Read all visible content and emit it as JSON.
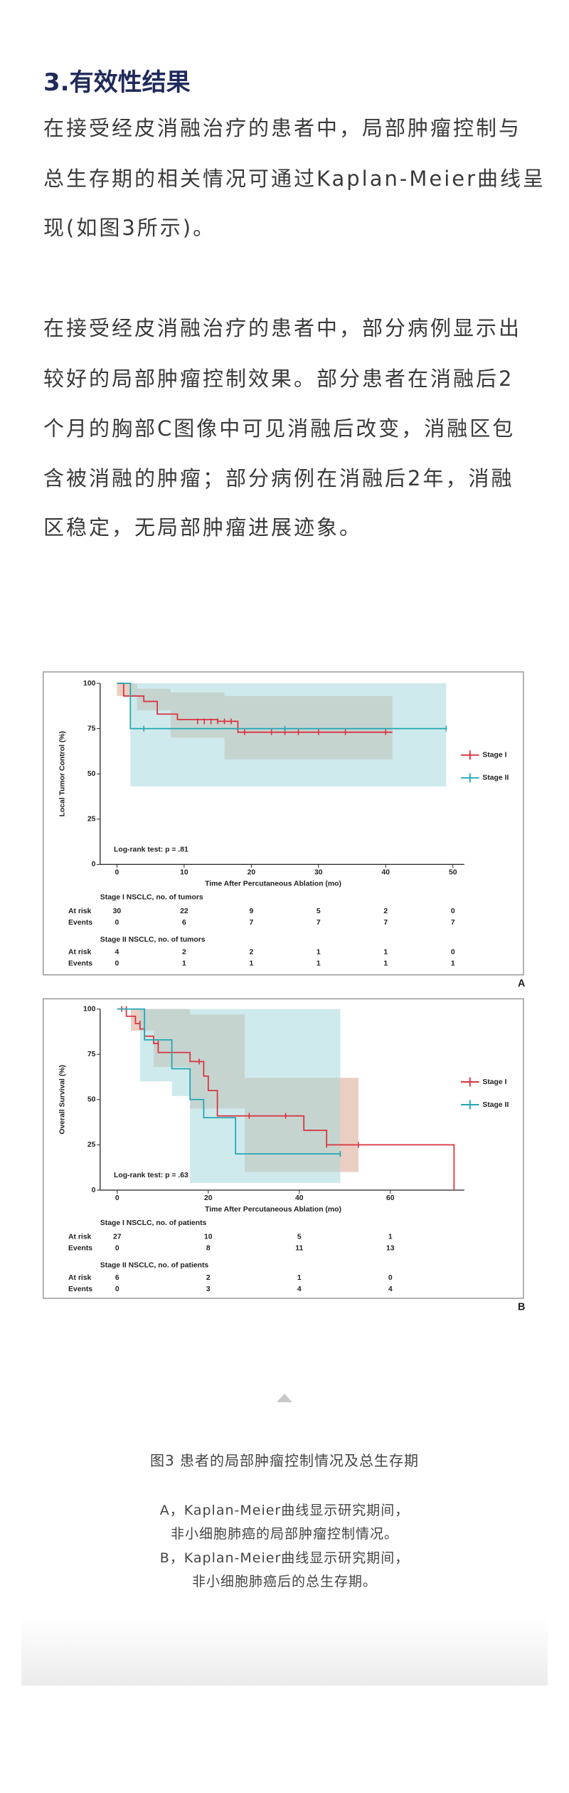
{
  "heading": "3.有效性结果",
  "paragraphs": [
    [
      "在接受经皮消融治疗的患者中，局部肿瘤控制与",
      "总生存期的相关情况可通过Kaplan-Meier曲线呈",
      "现(如图3所示)。"
    ],
    [
      "在接受经皮消融治疗的患者中，部分病例显示出",
      "较好的局部肿瘤控制效果。部分患者在消融后2",
      "个月的胸部C图像中可见消融后改变，消融区包",
      "含被消融的肿瘤；部分病例在消融后2年，消融",
      "区稳定，无局部肿瘤进展迹象。"
    ]
  ],
  "caption": {
    "title": "图3  患者的局部肿瘤控制情况及总生存期",
    "lines": [
      "A，Kaplan-Meier曲线显示研究期间，",
      "非小细胞肺癌的局部肿瘤控制情况。",
      "B，Kaplan-Meier曲线显示研究期间，",
      "非小细胞肺癌后的总生存期。"
    ]
  },
  "chart_data": [
    {
      "type": "step",
      "label": "A",
      "xlabel": "Time After Percutaneous Ablation (mo)",
      "ylabel": "Local Tumor Control (%)",
      "annotation": "Log-rank test: p = .81",
      "xlim": [
        -2.5,
        51.7
      ],
      "ylim": [
        0,
        100
      ],
      "xticks": [
        0,
        10,
        20,
        30,
        40,
        50
      ],
      "yticks": [
        0,
        25,
        50,
        75,
        100
      ],
      "legend": "right",
      "series": [
        {
          "name": "Stage I",
          "color": "#d9333f",
          "band_color": "#dba58f",
          "x": [
            0,
            1,
            1,
            4,
            4,
            6,
            6,
            9,
            9,
            15,
            15,
            18,
            18,
            41
          ],
          "values": [
            100,
            100,
            93,
            93,
            90,
            90,
            83,
            83,
            80,
            80,
            79,
            79,
            73,
            73
          ],
          "band": {
            "x": [
              0,
              3,
              3,
              8,
              8,
              16,
              16,
              41
            ],
            "upper": [
              100,
              100,
              97,
              97,
              95,
              95,
              93,
              93
            ],
            "lower": [
              93,
              93,
              85,
              85,
              70,
              70,
              58,
              58
            ]
          },
          "censored": {
            "x": [
              12,
              13,
              14,
              15,
              16,
              17,
              19,
              23,
              25,
              27,
              30,
              34,
              40
            ],
            "values": [
              79,
              79,
              79,
              79,
              79,
              79,
              73,
              73,
              73,
              73,
              73,
              73,
              73
            ]
          }
        },
        {
          "name": "Stage II",
          "color": "#22a7b4",
          "band_color": "#a8d8dc",
          "x": [
            0,
            2,
            2,
            49
          ],
          "values": [
            100,
            100,
            75,
            75
          ],
          "band": {
            "x": [
              0,
              2,
              2,
              49
            ],
            "upper": [
              100,
              100,
              100,
              100
            ],
            "lower": [
              100,
              100,
              43,
              43
            ]
          },
          "censored": {
            "x": [
              4,
              25,
              49
            ],
            "values": [
              75,
              75,
              75
            ]
          }
        }
      ],
      "risk_table": {
        "row_labels": [
          "At risk",
          "Events"
        ],
        "groups": [
          {
            "title": "Stage I NSCLC, no. of tumors",
            "at_risk": [
              30,
              22,
              9,
              5,
              2,
              0
            ],
            "events": [
              0,
              6,
              7,
              7,
              7,
              7
            ]
          },
          {
            "title": "Stage II NSCLC, no. of tumors",
            "at_risk": [
              4,
              2,
              2,
              1,
              1,
              0
            ],
            "events": [
              0,
              1,
              1,
              1,
              1,
              1
            ]
          }
        ]
      }
    },
    {
      "type": "step",
      "label": "B",
      "xlabel": "Time After Percutaneous Ablation (mo)",
      "ylabel": "Overall Survival (%)",
      "annotation": "Log-rank test: p = .63",
      "xlim": [
        -3.75,
        76.25
      ],
      "ylim": [
        0,
        100
      ],
      "xticks": [
        0,
        20,
        40,
        60
      ],
      "yticks": [
        0,
        25,
        50,
        75,
        100
      ],
      "legend": "right",
      "series": [
        {
          "name": "Stage I",
          "color": "#d9333f",
          "band_color": "#dba58f",
          "x": [
            0,
            2,
            2,
            4,
            4,
            5,
            5,
            6,
            6,
            8,
            8,
            9,
            9,
            16,
            16,
            19,
            19,
            20,
            20,
            22,
            22,
            41,
            41,
            46,
            46,
            74,
            74
          ],
          "values": [
            100,
            100,
            96,
            96,
            92,
            92,
            89,
            89,
            85,
            85,
            81,
            81,
            76,
            76,
            71,
            71,
            63,
            63,
            55,
            55,
            41,
            41,
            33,
            33,
            25,
            25,
            0
          ],
          "band": {
            "x": [
              0,
              3,
              3,
              8,
              8,
              16,
              16,
              28,
              28,
              53
            ],
            "upper": [
              100,
              100,
              100,
              100,
              100,
              100,
              97,
              97,
              62,
              62
            ],
            "lower": [
              100,
              100,
              88,
              88,
              68,
              68,
              45,
              45,
              10,
              10
            ]
          },
          "censored": {
            "x": [
              1,
              2,
              5,
              9,
              18,
              29,
              37,
              46,
              53
            ],
            "values": [
              100,
              100,
              92,
              81,
              71,
              41,
              41,
              25,
              25
            ]
          }
        },
        {
          "name": "Stage II",
          "color": "#22a7b4",
          "band_color": "#a8d8dc",
          "x": [
            0,
            6,
            6,
            12,
            12,
            16,
            16,
            19,
            19,
            26,
            26,
            49
          ],
          "values": [
            100,
            100,
            83,
            83,
            67,
            67,
            50,
            50,
            40,
            40,
            20,
            20
          ],
          "band": {
            "x": [
              0,
              5,
              5,
              12,
              12,
              16,
              16,
              26,
              26,
              49
            ],
            "upper": [
              100,
              100,
              100,
              100,
              100,
              100,
              100,
              100,
              100,
              100
            ],
            "lower": [
              100,
              100,
              60,
              60,
              52,
              52,
              4,
              4,
              4,
              4
            ]
          },
          "censored": {
            "x": [
              49
            ],
            "values": [
              20
            ]
          }
        }
      ],
      "risk_table": {
        "row_labels": [
          "At risk",
          "Events"
        ],
        "groups": [
          {
            "title": "Stage I NSCLC, no. of patients",
            "at_risk": [
              27,
              10,
              5,
              1
            ],
            "events": [
              0,
              8,
              11,
              13
            ]
          },
          {
            "title": "Stage II NSCLC, no. of patients",
            "at_risk": [
              6,
              2,
              1,
              0
            ],
            "events": [
              0,
              3,
              4,
              4
            ]
          }
        ]
      }
    }
  ]
}
